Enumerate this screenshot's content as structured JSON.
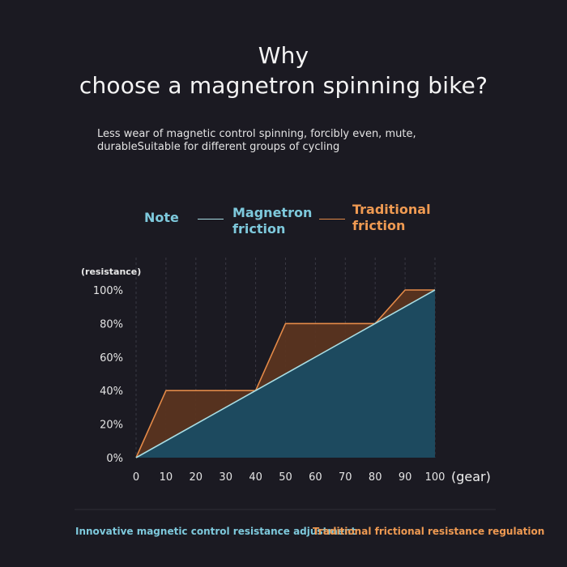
{
  "title": {
    "line1": "Why",
    "line2": "choose a magnetron spinning bike?"
  },
  "description": "Less wear of magnetic control spinning, forcibly even, mute, durableSuitable for different groups of cycling",
  "legend": {
    "note_label": "Note",
    "magnetron_label": "Magnetron friction",
    "traditional_label": "Traditional friction"
  },
  "footer": {
    "magnetron_caption": "Innovative magnetic control resistance adjustment",
    "traditional_caption": "Traditional frictional resistance regulation"
  },
  "colors": {
    "background": "#1b1a22",
    "magnetron_line": "#a8dde4",
    "magnetron_fill": "#1d4a5f",
    "traditional_line": "#e48a48",
    "traditional_fill": "#5a3420",
    "accent_blue": "#7ec9dc",
    "accent_orange": "#ef9a52"
  },
  "chart_data": {
    "type": "area",
    "ylabel": "(resistance)",
    "xlabel": "(gear)",
    "xlim": [
      0,
      100
    ],
    "ylim": [
      0,
      100
    ],
    "x_ticks": [
      "0",
      "10",
      "20",
      "30",
      "40",
      "50",
      "60",
      "70",
      "80",
      "90",
      "100"
    ],
    "y_ticks": [
      "0%",
      "20%",
      "40%",
      "60%",
      "80%",
      "100%"
    ],
    "grid": "vertical dashed",
    "series": [
      {
        "name": "Magnetron friction",
        "points": [
          [
            0,
            0
          ],
          [
            100,
            100
          ]
        ]
      },
      {
        "name": "Traditional friction",
        "points": [
          [
            0,
            0
          ],
          [
            10,
            40
          ],
          [
            40,
            40
          ],
          [
            50,
            80
          ],
          [
            80,
            80
          ],
          [
            90,
            100
          ],
          [
            100,
            100
          ]
        ]
      }
    ]
  }
}
